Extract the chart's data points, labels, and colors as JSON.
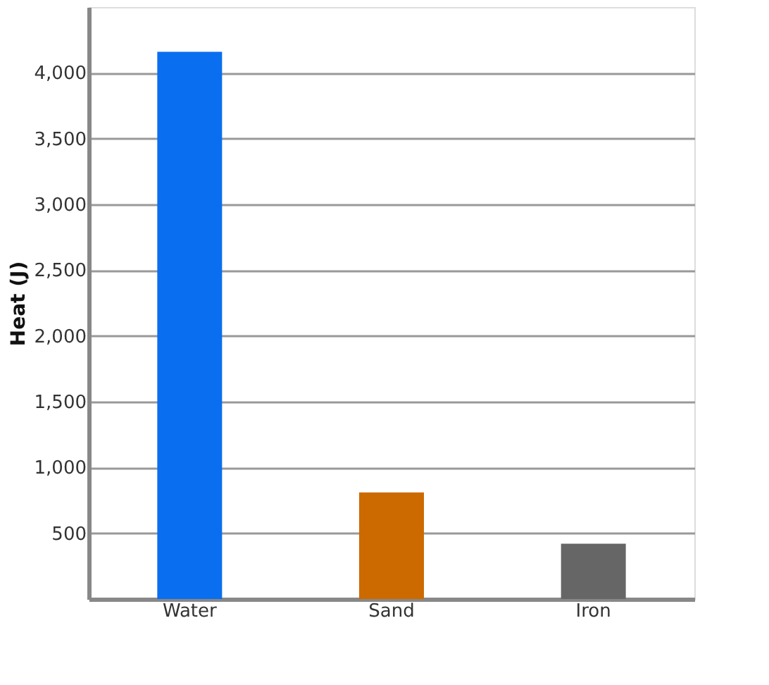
{
  "chart_data": {
    "type": "bar",
    "ylabel": "Heat (J)",
    "categories": [
      "Water",
      "Sand",
      "Iron"
    ],
    "values": [
      4160,
      810,
      420
    ],
    "colors": [
      "#0a6ef0",
      "#cc6a00",
      "#666666"
    ],
    "ylim": [
      0,
      4500
    ],
    "yticks": [
      500,
      {
        "value": 1000,
        "label": "1,000"
      },
      {
        "value": 1500,
        "label": "1,500"
      },
      {
        "value": 2000,
        "label": "2,000"
      },
      {
        "value": 2500,
        "label": "2,500"
      },
      {
        "value": 3000,
        "label": "3,000"
      },
      {
        "value": 3500,
        "label": "3,500"
      },
      {
        "value": 4000,
        "label": "4,000"
      }
    ],
    "grid": "y"
  }
}
